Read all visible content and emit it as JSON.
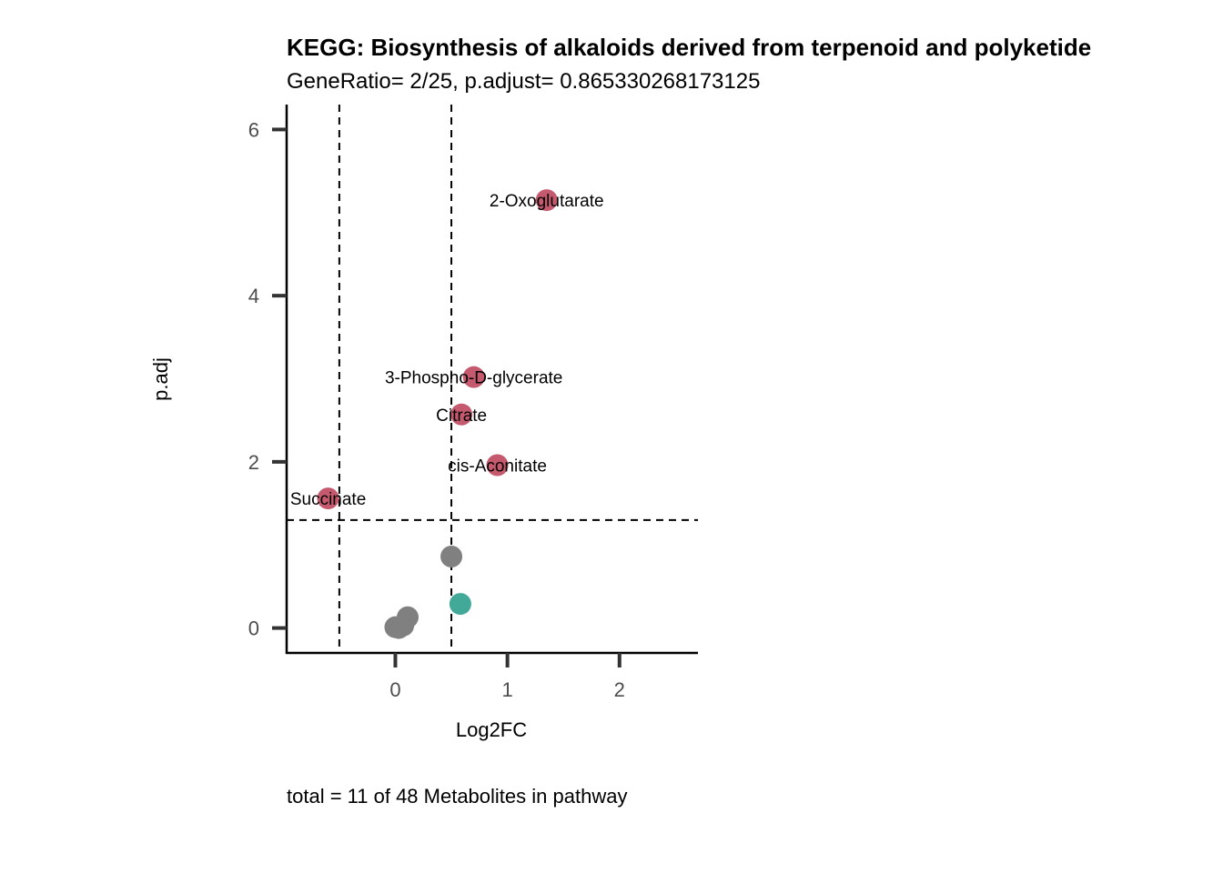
{
  "chart_data": {
    "type": "scatter",
    "title": "KEGG: Biosynthesis of alkaloids derived from terpenoid and polyketide",
    "subtitle": "GeneRatio= 2/25, p.adjust= 0.865330268173125",
    "xlabel": "Log2FC",
    "ylabel": "p.adj",
    "caption": "total = 11 of 48 Metabolites in pathway",
    "xlim": [
      -0.97,
      2.7
    ],
    "ylim": [
      -0.3,
      6.3
    ],
    "x_ticks": [
      0,
      1,
      2
    ],
    "y_ticks": [
      0,
      2,
      4,
      6
    ],
    "thresholds": {
      "x": [
        -0.5,
        0.5
      ],
      "y": 1.3
    },
    "grid": false,
    "legend": "none",
    "colors": {
      "up": "#c55a6e",
      "down": "#42a898",
      "ns": "#808080"
    },
    "points": [
      {
        "x": 1.35,
        "y": 5.15,
        "group": "up",
        "label": "2-Oxoglutarate"
      },
      {
        "x": 0.7,
        "y": 3.02,
        "group": "up",
        "label": "3-Phospho-D-glycerate"
      },
      {
        "x": 0.59,
        "y": 2.57,
        "group": "up",
        "label": "Citrate"
      },
      {
        "x": 0.91,
        "y": 1.96,
        "group": "up",
        "label": "cis-Aconitate"
      },
      {
        "x": -0.6,
        "y": 1.56,
        "group": "up",
        "label": "Succinate"
      },
      {
        "x": 0.5,
        "y": 0.86,
        "group": "ns",
        "label": ""
      },
      {
        "x": 0.58,
        "y": 0.29,
        "group": "down",
        "label": ""
      },
      {
        "x": 0.11,
        "y": 0.13,
        "group": "ns",
        "label": ""
      },
      {
        "x": 0.07,
        "y": 0.03,
        "group": "ns",
        "label": ""
      },
      {
        "x": 0.0,
        "y": 0.01,
        "group": "ns",
        "label": ""
      },
      {
        "x": 0.03,
        "y": 0.0,
        "group": "ns",
        "label": ""
      }
    ]
  }
}
